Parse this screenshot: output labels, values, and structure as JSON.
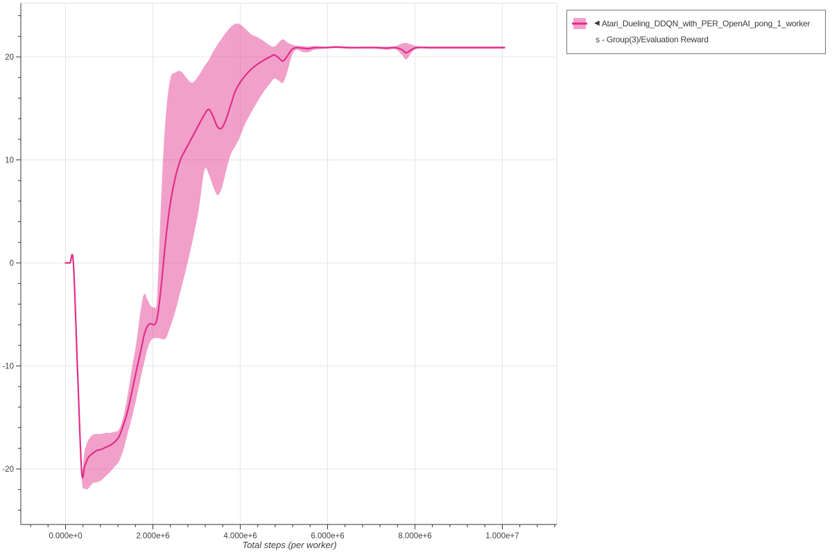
{
  "page": {
    "background": "#ffffff"
  },
  "legend": {
    "marker": "◀",
    "label_line1": "Atari_Dueling_DDQN_with_PER_OpenAI_pong_1_worker",
    "label_line2": "s - Group(3)/Evaluation Reward"
  },
  "colors": {
    "line": "#e12d88",
    "band": "rgba(225,45,136,0.45)",
    "grid": "#e5e5e5",
    "outline": "#e2e2e2",
    "axis": "#333333",
    "tick_label": "#3f3f3f",
    "axis_label": "#3f3f3f",
    "legend_border": "#757575",
    "legend_text": "#383838"
  },
  "chart_data": {
    "type": "line",
    "title": "",
    "xlabel": "Total steps (per worker)",
    "ylabel": "",
    "grid": "major-only",
    "legend_position": "top-right-outside",
    "x_unit_millions": true,
    "x_range_millions": [
      -1.0238,
      11.246
    ],
    "y_range": [
      -25.39,
      25.22
    ],
    "x_minor_step_millions": 0.4,
    "y_minor_step": 2,
    "x_ticks": [
      {
        "v": 0,
        "label": "0.000e+0"
      },
      {
        "v": 2,
        "label": "2.000e+6"
      },
      {
        "v": 4,
        "label": "4.000e+6"
      },
      {
        "v": 6,
        "label": "6.000e+6"
      },
      {
        "v": 8,
        "label": "8.000e+6"
      },
      {
        "v": 10,
        "label": "1.000e+7"
      }
    ],
    "y_ticks": [
      {
        "v": -20,
        "label": "-20"
      },
      {
        "v": -10,
        "label": "-10"
      },
      {
        "v": 0,
        "label": "0"
      },
      {
        "v": 10,
        "label": "10"
      },
      {
        "v": 20,
        "label": "20"
      }
    ],
    "series": [
      {
        "name": "Atari_Dueling_DDQN_with_PER_OpenAI_pong_1_workers - Group(3)/Evaluation Reward",
        "kind": "mean-with-minmax-band",
        "points_format": [
          "steps_millions",
          "mean",
          "lower",
          "upper"
        ],
        "points": [
          [
            0.0,
            0,
            0,
            0
          ],
          [
            0.1,
            0,
            0,
            0
          ],
          [
            0.18,
            0,
            0,
            0
          ],
          [
            0.28,
            -11.0,
            -11.3,
            -10.7
          ],
          [
            0.37,
            -20.3,
            -20.8,
            -19.7
          ],
          [
            0.44,
            -19.7,
            -21.9,
            -18.2
          ],
          [
            0.52,
            -18.9,
            -21.9,
            -17.2
          ],
          [
            0.62,
            -18.5,
            -21.4,
            -16.7
          ],
          [
            0.72,
            -18.2,
            -21.3,
            -16.6
          ],
          [
            0.82,
            -18.1,
            -21.1,
            -16.6
          ],
          [
            0.92,
            -17.9,
            -20.7,
            -16.5
          ],
          [
            1.02,
            -17.7,
            -20.3,
            -16.5
          ],
          [
            1.12,
            -17.4,
            -19.8,
            -16.4
          ],
          [
            1.22,
            -16.9,
            -19.3,
            -16.2
          ],
          [
            1.32,
            -15.8,
            -18.2,
            -15.0
          ],
          [
            1.42,
            -14.4,
            -16.6,
            -12.9
          ],
          [
            1.52,
            -12.5,
            -15.0,
            -10.2
          ],
          [
            1.62,
            -10.5,
            -13.2,
            -7.8
          ],
          [
            1.72,
            -8.6,
            -11.2,
            -4.6
          ],
          [
            1.8,
            -7.0,
            -9.7,
            -3.0
          ],
          [
            1.88,
            -6.1,
            -8.3,
            -3.6
          ],
          [
            1.96,
            -5.9,
            -7.5,
            -4.2
          ],
          [
            2.03,
            -6.0,
            -7.3,
            -4.3
          ],
          [
            2.09,
            -5.5,
            -7.3,
            -3.8
          ],
          [
            2.15,
            -3.8,
            -7.3,
            2.0
          ],
          [
            2.22,
            -1.0,
            -7.4,
            9.0
          ],
          [
            2.3,
            2.5,
            -7.3,
            14.5
          ],
          [
            2.4,
            5.8,
            -6.2,
            17.9
          ],
          [
            2.52,
            8.4,
            -4.6,
            18.5
          ],
          [
            2.64,
            10.1,
            -2.6,
            18.6
          ],
          [
            2.76,
            11.1,
            -0.6,
            18.0
          ],
          [
            2.9,
            12.2,
            2.0,
            17.5
          ],
          [
            3.05,
            13.4,
            5.2,
            18.2
          ],
          [
            3.18,
            14.4,
            9.0,
            19.1
          ],
          [
            3.28,
            14.9,
            8.6,
            19.7
          ],
          [
            3.38,
            14.2,
            7.4,
            20.5
          ],
          [
            3.48,
            13.2,
            6.6,
            21.2
          ],
          [
            3.58,
            13.1,
            7.3,
            21.8
          ],
          [
            3.68,
            14.0,
            9.0,
            22.4
          ],
          [
            3.78,
            15.3,
            10.5,
            22.9
          ],
          [
            3.88,
            16.6,
            11.3,
            23.2
          ],
          [
            3.98,
            17.4,
            12.1,
            23.2
          ],
          [
            4.1,
            18.1,
            13.4,
            22.8
          ],
          [
            4.25,
            18.8,
            14.6,
            22.2
          ],
          [
            4.4,
            19.3,
            15.7,
            21.9
          ],
          [
            4.55,
            19.7,
            16.7,
            21.5
          ],
          [
            4.68,
            20.0,
            17.4,
            21.1
          ],
          [
            4.78,
            20.2,
            17.9,
            21.0
          ],
          [
            4.88,
            19.9,
            17.7,
            21.4
          ],
          [
            4.98,
            19.6,
            17.5,
            21.7
          ],
          [
            5.08,
            20.1,
            18.6,
            21.4
          ],
          [
            5.18,
            20.7,
            20.1,
            21.2
          ],
          [
            5.28,
            20.9,
            20.7,
            21.1
          ],
          [
            5.42,
            20.85,
            20.5,
            21.05
          ],
          [
            5.56,
            20.8,
            20.45,
            21.0
          ],
          [
            5.7,
            20.9,
            20.7,
            21.05
          ],
          [
            5.95,
            20.9,
            20.8,
            21.0
          ],
          [
            6.2,
            20.95,
            20.85,
            21.05
          ],
          [
            6.5,
            20.9,
            20.8,
            21.0
          ],
          [
            6.8,
            20.9,
            20.8,
            21.0
          ],
          [
            7.1,
            20.9,
            20.8,
            21.0
          ],
          [
            7.35,
            20.85,
            20.7,
            21.0
          ],
          [
            7.55,
            20.9,
            20.75,
            21.05
          ],
          [
            7.7,
            20.7,
            20.2,
            21.3
          ],
          [
            7.8,
            20.4,
            19.75,
            21.35
          ],
          [
            7.92,
            20.7,
            20.4,
            21.2
          ],
          [
            8.05,
            20.9,
            20.8,
            21.05
          ],
          [
            8.4,
            20.9,
            20.8,
            21.0
          ],
          [
            8.8,
            20.9,
            20.8,
            21.0
          ],
          [
            9.2,
            20.9,
            20.8,
            21.0
          ],
          [
            9.6,
            20.9,
            20.8,
            21.0
          ],
          [
            10.05,
            20.9,
            20.8,
            21.0
          ]
        ]
      }
    ]
  }
}
